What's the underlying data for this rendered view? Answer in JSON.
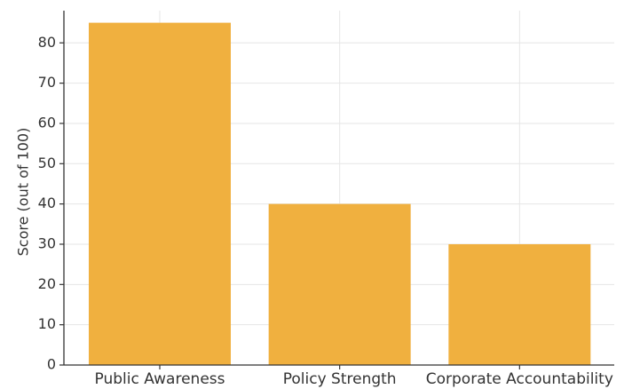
{
  "chart_data": {
    "type": "bar",
    "categories": [
      "Public Awareness",
      "Policy Strength",
      "Corporate Accountability"
    ],
    "values": [
      85,
      40,
      30
    ],
    "title": "",
    "xlabel": "",
    "ylabel": "Score (out of 100)",
    "ylim": [
      0,
      88
    ],
    "yticks": [
      0,
      10,
      20,
      30,
      40,
      50,
      60,
      70,
      80
    ],
    "grid": true,
    "bar_color": "#f0b03f"
  }
}
